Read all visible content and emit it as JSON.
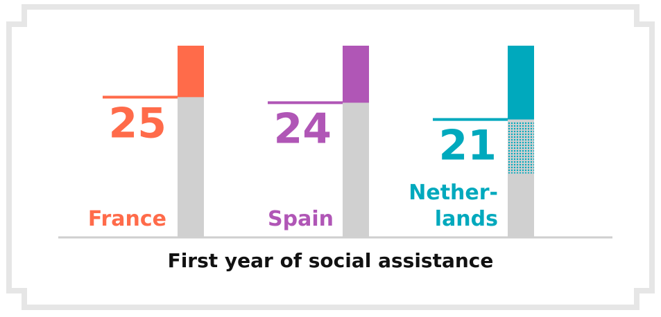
{
  "chart_data": {
    "type": "bar",
    "title": "First year of social assistance",
    "categories": [
      "France",
      "Spain",
      "Netherlands"
    ],
    "category_labels": [
      [
        "France"
      ],
      [
        "Spain"
      ],
      [
        "Nether-",
        "lands"
      ]
    ],
    "values": [
      25,
      24,
      21
    ],
    "ylim": [
      0,
      30
    ],
    "colors": [
      "#ff6b4a",
      "#b056b6",
      "#00a9bd"
    ],
    "neutral_color": "#d0d0d0",
    "grid": false,
    "legend": "none"
  }
}
